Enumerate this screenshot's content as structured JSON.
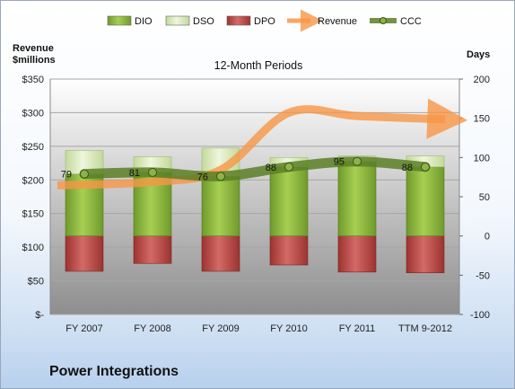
{
  "chart_data": {
    "type": "bar",
    "title": "12-Month Periods",
    "categories": [
      "FY 2007",
      "FY 2008",
      "FY 2009",
      "FY 2010",
      "FY 2011",
      "TTM 9-2012"
    ],
    "left_axis": {
      "label_line1": "Revenue",
      "label_line2": "$millions",
      "range": [
        0,
        350
      ],
      "ticks": [
        0,
        50,
        100,
        150,
        200,
        250,
        300,
        350
      ],
      "tick_labels": [
        "$-",
        "$50",
        "$100",
        "$150",
        "$200",
        "$250",
        "$300",
        "$350"
      ]
    },
    "right_axis": {
      "label": "Days",
      "range": [
        -100,
        200
      ],
      "ticks": [
        -100,
        -50,
        0,
        50,
        100,
        150,
        200
      ],
      "tick_labels": [
        "-100",
        "-50",
        "0",
        "50",
        "100",
        "150",
        "200"
      ]
    },
    "series": [
      {
        "name": "DIO",
        "type": "stacked-bar",
        "axis": "days",
        "color": "#8fbb3e",
        "values": [
          79,
          81,
          76,
          88,
          95,
          88
        ]
      },
      {
        "name": "DSO",
        "type": "stacked-bar",
        "axis": "days",
        "color": "#dcebb8",
        "values": [
          30,
          20,
          36,
          12,
          7,
          14
        ]
      },
      {
        "name": "DPO",
        "type": "stacked-bar-negative",
        "axis": "days",
        "color": "#c0504d",
        "values": [
          -45,
          -35,
          -45,
          -37,
          -46,
          -47
        ]
      },
      {
        "name": "Revenue",
        "type": "line",
        "axis": "revenue",
        "color": "#f79646",
        "values": [
          192,
          197,
          215,
          300,
          295,
          290
        ]
      },
      {
        "name": "CCC",
        "type": "line",
        "axis": "days",
        "color": "#5b7f24",
        "values": [
          79,
          81,
          76,
          88,
          95,
          88
        ]
      }
    ],
    "ccc_labels": [
      "79",
      "81",
      "76",
      "88",
      "95",
      "88"
    ],
    "legend_position": "top"
  },
  "company_name": "Power Integrations"
}
